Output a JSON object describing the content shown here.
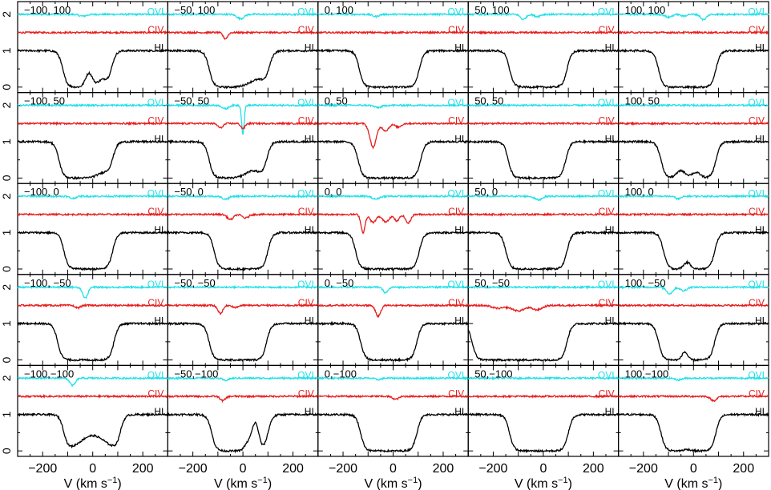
{
  "chart_data": {
    "type": "line",
    "layout": {
      "rows": 5,
      "cols": 5
    },
    "x_axis": {
      "label_main": "V (km s",
      "label_sup": "−1",
      "label_end": ")",
      "range": [
        -300,
        300
      ],
      "ticks": [
        -200,
        0,
        200
      ],
      "tick_labels": [
        "−200",
        "0",
        "200"
      ]
    },
    "y_axis": {
      "range": [
        -0.15,
        2.35
      ],
      "ticks": [
        0,
        1,
        2
      ],
      "tick_labels": [
        "0",
        "1",
        "2"
      ]
    },
    "series": [
      {
        "name": "OVI",
        "color": "#22e0e8",
        "continuum": 2.0
      },
      {
        "name": "CIV",
        "color": "#e81c1c",
        "continuum": 1.5
      },
      {
        "name": "HI",
        "color": "#000000",
        "continuum": 1.0
      }
    ],
    "panels": [
      {
        "label": "−100, 100",
        "HI": {
          "edges": [
            -120,
            75
          ],
          "min": 0.0,
          "features": [
            {
              "v": -15,
              "w": 14,
              "d": -0.38
            },
            {
              "v": 40,
              "w": 20,
              "d": -0.2
            }
          ]
        },
        "CIV": [],
        "OVI": [
          {
            "v": -40,
            "w": 15,
            "d": 0.05
          }
        ]
      },
      {
        "label": "−50, 100",
        "HI": {
          "edges": [
            -135,
            105
          ],
          "min": 0.0,
          "features": [
            {
              "v": 60,
              "w": 35,
              "d": -0.2
            }
          ]
        },
        "CIV": [
          {
            "v": -70,
            "w": 9,
            "d": 0.17
          }
        ],
        "OVI": [
          {
            "v": -10,
            "w": 14,
            "d": 0.12
          }
        ]
      },
      {
        "label": "0, 100",
        "HI": {
          "edges": [
            -135,
            105
          ],
          "min": 0.0,
          "features": []
        },
        "CIV": [],
        "OVI": [
          {
            "v": -70,
            "w": 12,
            "d": 0.06
          }
        ]
      },
      {
        "label": "50, 100",
        "HI": {
          "edges": [
            -135,
            95
          ],
          "min": 0.0,
          "features": []
        },
        "CIV": [],
        "OVI": [
          {
            "v": -80,
            "w": 11,
            "d": 0.14
          },
          {
            "v": -25,
            "w": 12,
            "d": 0.06
          }
        ]
      },
      {
        "label": "100, 100",
        "HI": {
          "edges": [
            -140,
            90
          ],
          "min": 0.0,
          "features": []
        },
        "CIV": [],
        "OVI": [
          {
            "v": -100,
            "w": 13,
            "d": 0.08
          },
          {
            "v": -40,
            "w": 10,
            "d": 0.05
          },
          {
            "v": 40,
            "w": 11,
            "d": 0.15
          }
        ]
      },
      {
        "label": "−100,  50",
        "HI": {
          "edges": [
            -135,
            80
          ],
          "min": 0.0,
          "features": [
            {
              "v": 50,
              "w": 30,
              "d": -0.15
            }
          ]
        },
        "CIV": [],
        "OVI": []
      },
      {
        "label": "−50,  50",
        "HI": {
          "edges": [
            -135,
            95
          ],
          "min": 0.0,
          "features": [
            {
              "v": 40,
              "w": 30,
              "d": -0.2
            }
          ]
        },
        "CIV": [
          {
            "v": -90,
            "w": 10,
            "d": 0.12
          },
          {
            "v": 0,
            "w": 8,
            "d": 0.14
          }
        ],
        "OVI": [
          {
            "v": -70,
            "w": 12,
            "d": 0.1
          },
          {
            "v": 0,
            "w": 5,
            "d": 0.8
          }
        ]
      },
      {
        "label": "0,  50",
        "HI": {
          "edges": [
            -140,
            110
          ],
          "min": 0.0,
          "features": []
        },
        "CIV": [
          {
            "v": -80,
            "w": 13,
            "d": 0.65
          },
          {
            "v": -30,
            "w": 13,
            "d": 0.2
          },
          {
            "v": 20,
            "w": 12,
            "d": 0.1
          }
        ],
        "OVI": [
          {
            "v": -60,
            "w": 15,
            "d": 0.06
          }
        ]
      },
      {
        "label": "50,  50",
        "HI": {
          "edges": [
            -140,
            90
          ],
          "min": 0.0,
          "features": []
        },
        "CIV": [],
        "OVI": []
      },
      {
        "label": "100,  50",
        "HI": {
          "edges": [
            -130,
            90
          ],
          "min": 0.0,
          "features": [
            {
              "v": -50,
              "w": 18,
              "d": -0.2
            },
            {
              "v": 10,
              "w": 18,
              "d": -0.15
            }
          ]
        },
        "CIV": [],
        "OVI": []
      },
      {
        "label": "−100,   0",
        "HI": {
          "edges": [
            -115,
            80
          ],
          "min": 0.0,
          "features": []
        },
        "CIV": [],
        "OVI": [
          {
            "v": -80,
            "w": 12,
            "d": 0.06
          }
        ]
      },
      {
        "label": "−50,   0",
        "HI": {
          "edges": [
            -115,
            100
          ],
          "min": 0.0,
          "features": []
        },
        "CIV": [
          {
            "v": -50,
            "w": 12,
            "d": 0.14
          },
          {
            "v": 10,
            "w": 12,
            "d": 0.1
          }
        ],
        "OVI": [
          {
            "v": -70,
            "w": 13,
            "d": 0.08
          }
        ]
      },
      {
        "label": "0,   0",
        "HI": {
          "edges": [
            -150,
            105
          ],
          "min": 0.0,
          "features": []
        },
        "CIV": [
          {
            "v": -120,
            "w": 8,
            "d": 0.5
          },
          {
            "v": -80,
            "w": 12,
            "d": 0.22
          },
          {
            "v": -30,
            "w": 14,
            "d": 0.2
          },
          {
            "v": 15,
            "w": 10,
            "d": 0.18
          },
          {
            "v": 60,
            "w": 10,
            "d": 0.24
          }
        ],
        "OVI": [
          {
            "v": -70,
            "w": 14,
            "d": 0.08
          }
        ]
      },
      {
        "label": "50,   0",
        "HI": {
          "edges": [
            -150,
            95
          ],
          "min": 0.0,
          "features": []
        },
        "CIV": [],
        "OVI": [
          {
            "v": -20,
            "w": 14,
            "d": 0.1
          }
        ]
      },
      {
        "label": "100,   0",
        "HI": {
          "edges": [
            -120,
            85
          ],
          "min": 0.0,
          "features": [
            {
              "v": -25,
              "w": 14,
              "d": -0.18
            }
          ]
        },
        "CIV": [],
        "OVI": [
          {
            "v": -60,
            "w": 12,
            "d": 0.07
          }
        ]
      },
      {
        "label": "−100, −50",
        "HI": {
          "edges": [
            -140,
            85
          ],
          "min": 0.0,
          "features": []
        },
        "CIV": [
          {
            "v": -60,
            "w": 10,
            "d": 0.07
          }
        ],
        "OVI": [
          {
            "v": -30,
            "w": 10,
            "d": 0.3
          }
        ]
      },
      {
        "label": "−50, −50",
        "HI": {
          "edges": [
            -135,
            95
          ],
          "min": 0.0,
          "features": []
        },
        "CIV": [
          {
            "v": -90,
            "w": 10,
            "d": 0.22
          },
          {
            "v": -30,
            "w": 10,
            "d": 0.06
          }
        ],
        "OVI": []
      },
      {
        "label": "0, −50",
        "HI": {
          "edges": [
            -130,
            95
          ],
          "min": 0.0,
          "features": []
        },
        "CIV": [
          {
            "v": -60,
            "w": 10,
            "d": 0.3
          }
        ],
        "OVI": [
          {
            "v": -30,
            "w": 10,
            "d": 0.15
          }
        ]
      },
      {
        "label": "50, −50",
        "HI": {
          "edges": [
            -285,
            95
          ],
          "min": 0.0,
          "features": []
        },
        "CIV": [
          {
            "v": -180,
            "w": 25,
            "d": 0.08
          },
          {
            "v": -100,
            "w": 25,
            "d": 0.15
          },
          {
            "v": -25,
            "w": 20,
            "d": 0.12
          }
        ],
        "OVI": []
      },
      {
        "label": "100, −50",
        "HI": {
          "edges": [
            -140,
            85
          ],
          "min": 0.0,
          "features": [
            {
              "v": -35,
              "w": 11,
              "d": -0.22
            }
          ]
        },
        "CIV": [],
        "OVI": [
          {
            "v": -95,
            "w": 12,
            "d": 0.18
          },
          {
            "v": -40,
            "w": 12,
            "d": 0.1
          }
        ]
      },
      {
        "label": "−100,−100",
        "HI": {
          "edges": [
            -115,
            110
          ],
          "min": 0.0,
          "features": [
            {
              "v": 0,
              "w": 50,
              "d": -0.42
            }
          ]
        },
        "CIV": [],
        "OVI": [
          {
            "v": -80,
            "w": 11,
            "d": 0.2
          }
        ]
      },
      {
        "label": "−50,−100",
        "HI": {
          "edges": [
            -125,
            100
          ],
          "min": 0.0,
          "features": [
            {
              "v": 50,
              "w": 14,
              "d": -0.75
            },
            {
              "v": 20,
              "w": 14,
              "d": -0.2
            }
          ]
        },
        "CIV": [
          {
            "v": -80,
            "w": 10,
            "d": 0.12
          }
        ],
        "OVI": [
          {
            "v": -70,
            "w": 12,
            "d": 0.06
          }
        ]
      },
      {
        "label": "0,−100",
        "HI": {
          "edges": [
            -130,
            95
          ],
          "min": 0.0,
          "features": []
        },
        "CIV": [
          {
            "v": 10,
            "w": 12,
            "d": 0.08
          }
        ],
        "OVI": [
          {
            "v": -60,
            "w": 12,
            "d": 0.04
          }
        ]
      },
      {
        "label": "50,−100",
        "HI": {
          "edges": [
            -135,
            100
          ],
          "min": 0.0,
          "features": []
        },
        "CIV": [],
        "OVI": []
      },
      {
        "label": "100,−100",
        "HI": {
          "edges": [
            -130,
            90
          ],
          "min": 0.0,
          "features": [
            {
              "v": -25,
              "w": 15,
              "d": -0.04
            }
          ]
        },
        "CIV": [
          {
            "v": 80,
            "w": 12,
            "d": 0.12
          }
        ],
        "OVI": [
          {
            "v": -60,
            "w": 12,
            "d": 0.05
          }
        ]
      }
    ]
  }
}
